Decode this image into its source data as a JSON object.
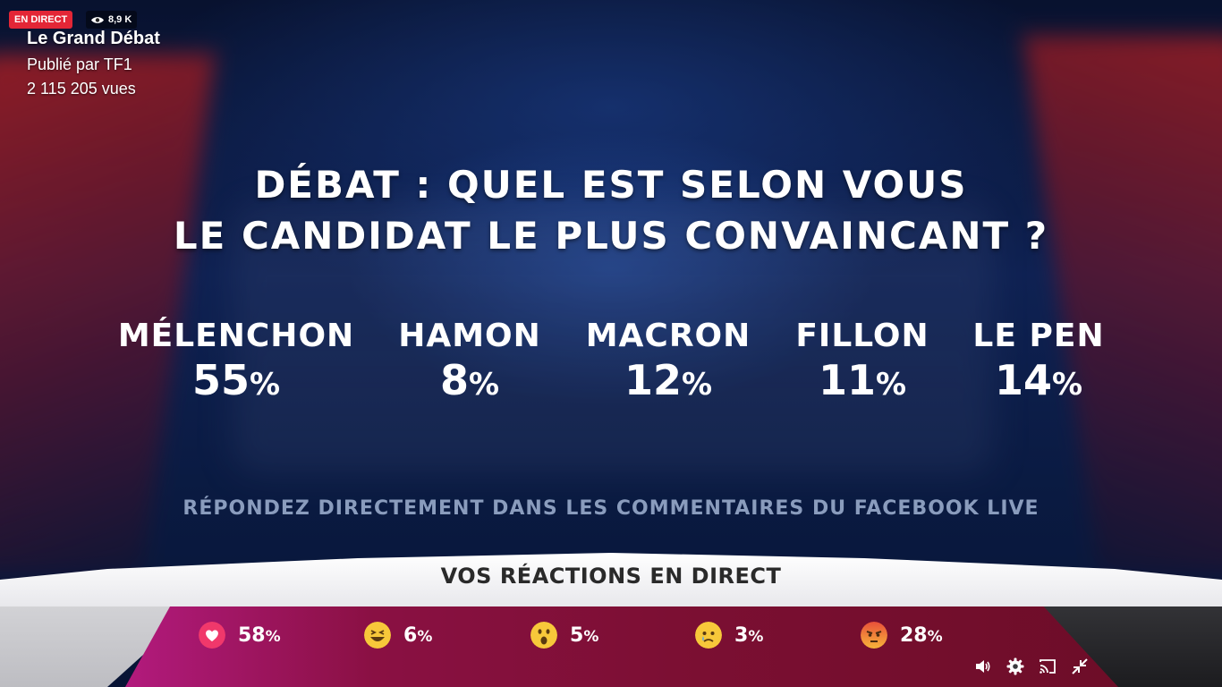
{
  "header": {
    "live_label": "EN DIRECT",
    "viewers": "8,9 K",
    "title": "Le Grand Débat",
    "publisher": "Publié par TF1",
    "views": "2 115 205 vues"
  },
  "question": {
    "line1": "DÉBAT : QUEL EST SELON VOUS",
    "line2": "LE CANDIDAT LE PLUS CONVAINCANT ?"
  },
  "candidates": [
    {
      "name": "MÉLENCHON",
      "value": "55",
      "unit": "%"
    },
    {
      "name": "HAMON",
      "value": "8",
      "unit": "%"
    },
    {
      "name": "MACRON",
      "value": "12",
      "unit": "%"
    },
    {
      "name": "FILLON",
      "value": "11",
      "unit": "%"
    },
    {
      "name": "LE PEN",
      "value": "14",
      "unit": "%"
    }
  ],
  "prompt": "RÉPONDEZ DIRECTEMENT DANS LES COMMENTAIRES DU FACEBOOK LIVE",
  "reactions_title": "VOS RÉACTIONS EN DIRECT",
  "reactions": [
    {
      "icon": "love-icon",
      "value": "58",
      "unit": "%"
    },
    {
      "icon": "haha-icon",
      "value": "6",
      "unit": "%"
    },
    {
      "icon": "wow-icon",
      "value": "5",
      "unit": "%"
    },
    {
      "icon": "sad-icon",
      "value": "3",
      "unit": "%"
    },
    {
      "icon": "angry-icon",
      "value": "28",
      "unit": "%"
    }
  ],
  "controls": [
    "volume-icon",
    "settings-icon",
    "cast-icon",
    "fullscreen-exit-icon"
  ],
  "colors": {
    "live_red": "#e32636",
    "love": "#f0386b",
    "emoji_yellow": "#f7c83a",
    "angry_orange": "#f0703a"
  }
}
